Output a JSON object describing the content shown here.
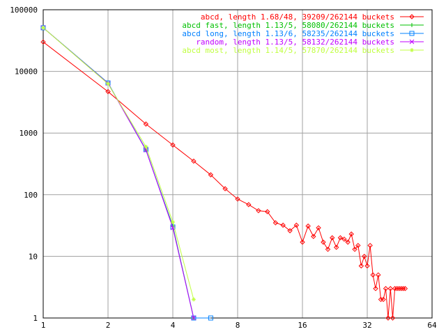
{
  "chart_data": {
    "type": "line",
    "title": "",
    "xlabel": "",
    "ylabel": "",
    "x_scale": "log2",
    "y_scale": "log10",
    "xlim": [
      1,
      64
    ],
    "ylim": [
      1,
      100000
    ],
    "grid": true,
    "legend_position": "top-right",
    "x_ticks": [
      1,
      2,
      4,
      8,
      16,
      32,
      64
    ],
    "x_tick_labels": [
      "1",
      "2",
      "4",
      "8",
      "16",
      "32",
      "64"
    ],
    "y_ticks": [
      1,
      10,
      100,
      1000,
      10000,
      100000
    ],
    "y_tick_labels": [
      "1",
      "10",
      "100",
      "1000",
      "10000",
      "100000"
    ],
    "series": [
      {
        "name": "abcd, length 1.68/48, 39209/262144 buckets",
        "color": "#ff0000",
        "marker": "diamond",
        "x": [
          1,
          2,
          3,
          4,
          5,
          6,
          7,
          8,
          9,
          10,
          11,
          12,
          13,
          14,
          15,
          16,
          17,
          18,
          19,
          20,
          21,
          22,
          23,
          24,
          25,
          26,
          27,
          28,
          29,
          30,
          31,
          32,
          33,
          34,
          35,
          36,
          37,
          38,
          39,
          40,
          41,
          42,
          43,
          44,
          45,
          46,
          47,
          48
        ],
        "y": [
          30000,
          4700,
          1400,
          640,
          350,
          210,
          125,
          85,
          69,
          55,
          53,
          35,
          32,
          26,
          32,
          17,
          31,
          21,
          29,
          17,
          13,
          20,
          14,
          20,
          19,
          17,
          23,
          13,
          15,
          7,
          10,
          7,
          15,
          5,
          3,
          5,
          2,
          2,
          3,
          1,
          3,
          1,
          3,
          3,
          3,
          3,
          3,
          3
        ]
      },
      {
        "name": "abcd fast, length 1.13/5, 58080/262144 buckets",
        "color": "#00c000",
        "marker": "plus",
        "x": [
          1,
          2,
          3,
          4,
          5
        ],
        "y": [
          51000,
          6500,
          530,
          31,
          1
        ]
      },
      {
        "name": "abcd long, length 1.13/6, 58235/262144 buckets",
        "color": "#0080ff",
        "marker": "square",
        "x": [
          1,
          2,
          3,
          4,
          5,
          6
        ],
        "y": [
          51000,
          6500,
          540,
          30,
          1,
          1
        ]
      },
      {
        "name": "random, length 1.13/5, 58132/262144 buckets",
        "color": "#c000ff",
        "marker": "x",
        "x": [
          1,
          2,
          3,
          4,
          5
        ],
        "y": [
          51000,
          6400,
          530,
          29,
          1
        ]
      },
      {
        "name": "abcd most, length 1.14/5, 57870/262144 buckets",
        "color": "#c0ff40",
        "marker": "star",
        "x": [
          1,
          2,
          3,
          4,
          5
        ],
        "y": [
          51000,
          6300,
          600,
          36,
          2
        ]
      }
    ]
  }
}
